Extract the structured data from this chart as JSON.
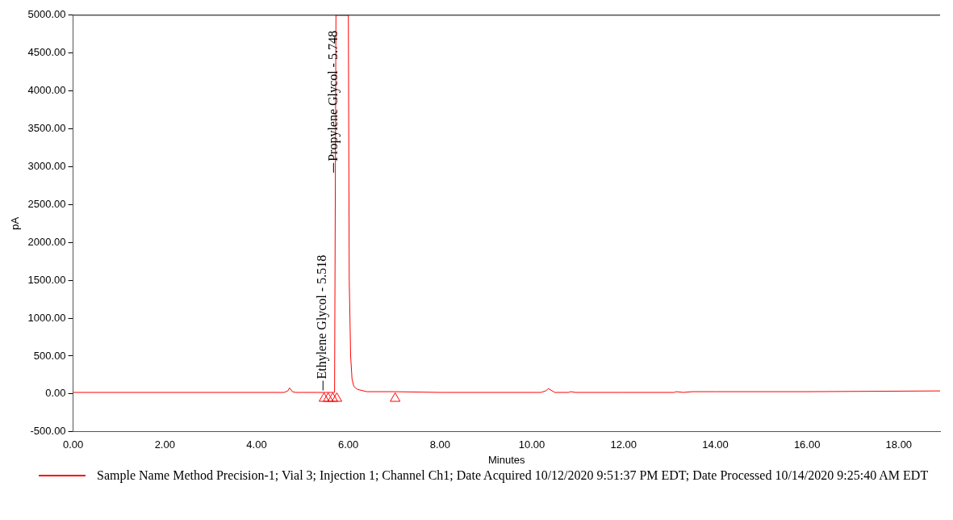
{
  "chart_data": {
    "type": "line",
    "xlabel": "Minutes",
    "ylabel": "pA",
    "xlim": [
      0,
      18.9
    ],
    "ylim": [
      -500,
      5000
    ],
    "xticks": [
      {
        "value": 0,
        "label": "0.00"
      },
      {
        "value": 2,
        "label": "2.00"
      },
      {
        "value": 4,
        "label": "4.00"
      },
      {
        "value": 6,
        "label": "6.00"
      },
      {
        "value": 8,
        "label": "8.00"
      },
      {
        "value": 10,
        "label": "10.00"
      },
      {
        "value": 12,
        "label": "12.00"
      },
      {
        "value": 14,
        "label": "14.00"
      },
      {
        "value": 16,
        "label": "16.00"
      },
      {
        "value": 18,
        "label": "18.00"
      }
    ],
    "yticks": [
      {
        "value": -500,
        "label": "-500.00"
      },
      {
        "value": 0,
        "label": "0.00"
      },
      {
        "value": 500,
        "label": "500.00"
      },
      {
        "value": 1000,
        "label": "1000.00"
      },
      {
        "value": 1500,
        "label": "1500.00"
      },
      {
        "value": 2000,
        "label": "2000.00"
      },
      {
        "value": 2500,
        "label": "2500.00"
      },
      {
        "value": 3000,
        "label": "3000.00"
      },
      {
        "value": 3500,
        "label": "3500.00"
      },
      {
        "value": 4000,
        "label": "4000.00"
      },
      {
        "value": 4500,
        "label": "4500.00"
      },
      {
        "value": 5000,
        "label": "5000.00"
      }
    ],
    "grid": false,
    "legend": "bottom",
    "series": [
      {
        "name": "Sample Name Method Precision-1; Vial 3; Injection 1; Channel Ch1; Date Acquired 10/12/2020 9:51:37 PM EDT; Date Processed 10/14/2020 9:25:40 AM EDT",
        "color": "#ff0000",
        "marker": "none",
        "line_style": "solid",
        "x": [
          0,
          4.6,
          4.68,
          4.72,
          4.78,
          4.85,
          5.0,
          5.5,
          5.7,
          5.73,
          6.0,
          6.02,
          6.05,
          6.08,
          6.12,
          6.2,
          6.4,
          7.0,
          8.0,
          10.2,
          10.3,
          10.36,
          10.42,
          10.5,
          10.8,
          10.85,
          10.95,
          12.0,
          13.1,
          13.15,
          13.3,
          13.5,
          14.0,
          16.0,
          18.9
        ],
        "values": [
          20,
          20,
          40,
          80,
          30,
          20,
          20,
          20,
          20,
          5000,
          5000,
          1500,
          500,
          200,
          100,
          60,
          30,
          30,
          20,
          20,
          40,
          70,
          50,
          20,
          20,
          30,
          20,
          20,
          20,
          30,
          20,
          30,
          30,
          30,
          40
        ]
      },
      {
        "type": "scatter",
        "color": "#ff0000",
        "marker": "triangle",
        "x": [
          5.47,
          5.56,
          5.66,
          5.75,
          7.02
        ],
        "values": [
          -60,
          -60,
          -60,
          -60,
          -60
        ]
      }
    ],
    "annotations": [
      {
        "text": "Ethylene Glycol - 5.518",
        "x": 5.518,
        "y": 25
      },
      {
        "text": "Propylene Glycol - 5.748",
        "x": 5.748,
        "y": 2900
      }
    ]
  }
}
